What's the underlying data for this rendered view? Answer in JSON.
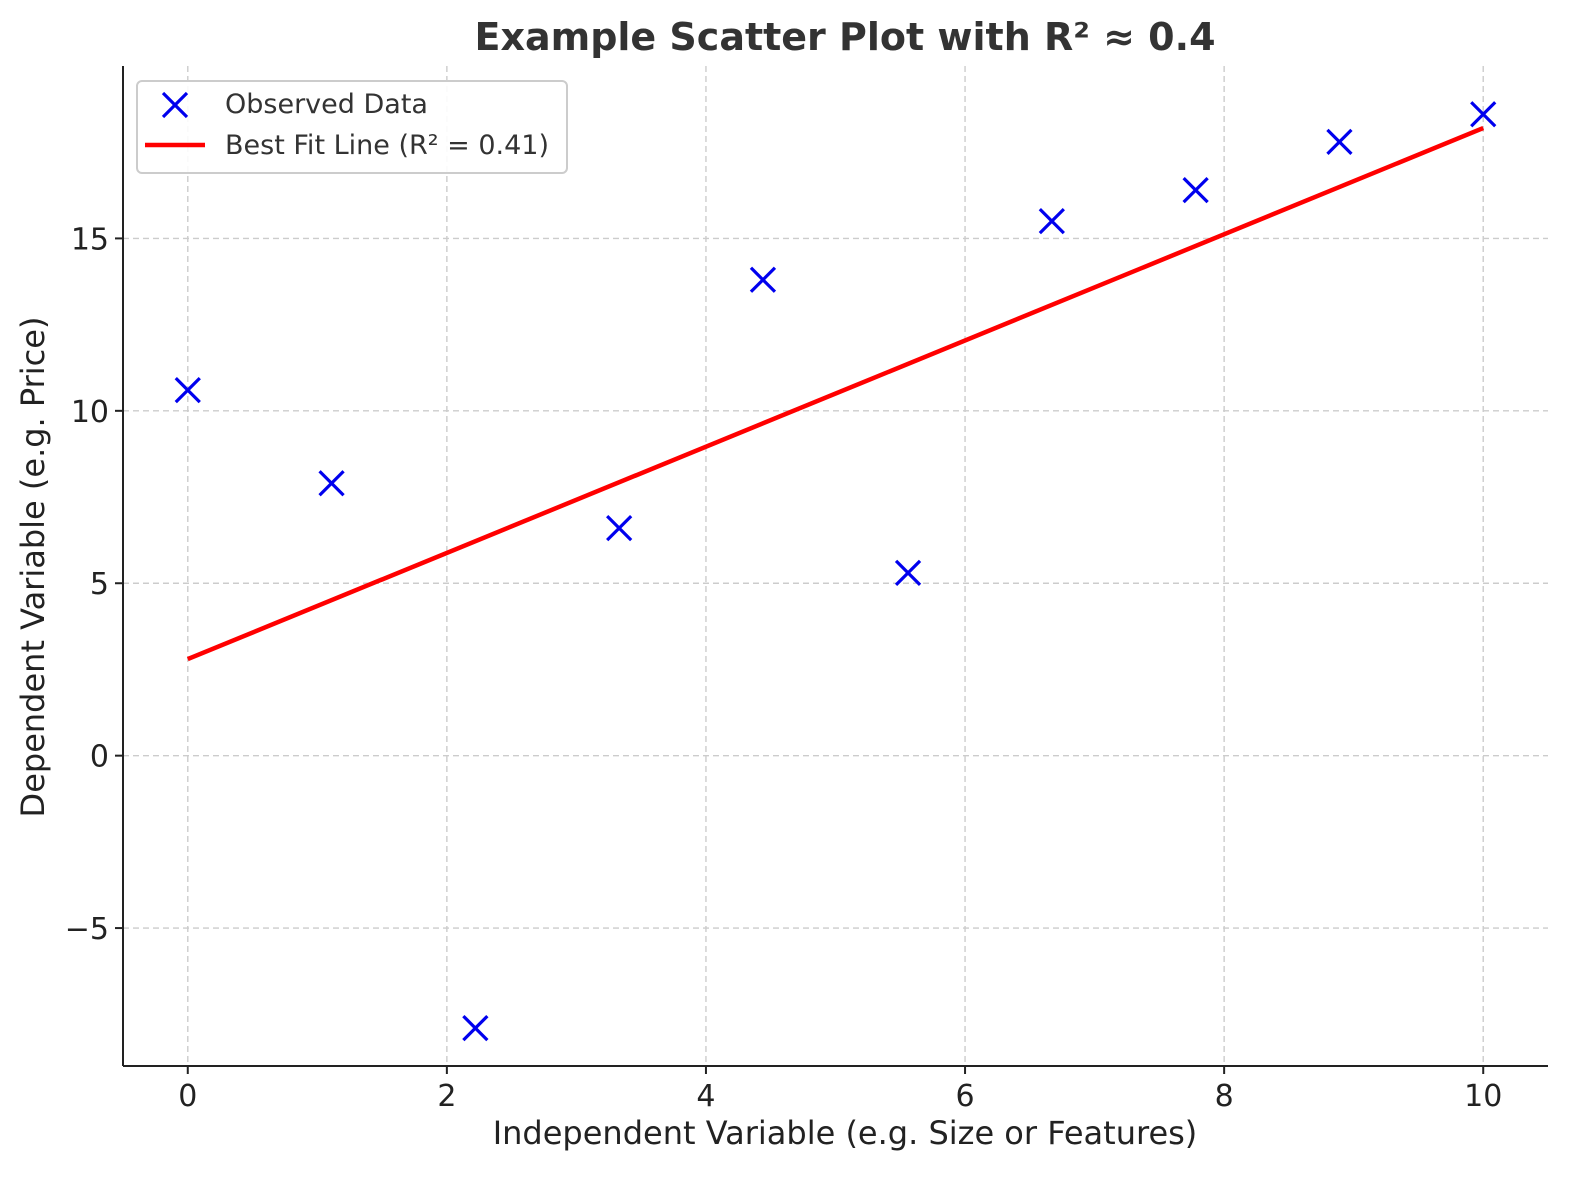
{
  "chart_data": {
    "type": "scatter",
    "title": "Example Scatter Plot with R² ≈ 0.4",
    "xlabel": "Independent Variable (e.g. Size or Features)",
    "ylabel": "Dependent Variable (e.g. Price)",
    "xlim": [
      -0.5,
      10.5
    ],
    "ylim": [
      -9,
      20
    ],
    "x_ticks": [
      0,
      2,
      4,
      6,
      8,
      10
    ],
    "x_tick_labels": [
      "0",
      "2",
      "4",
      "6",
      "8",
      "10"
    ],
    "y_ticks": [
      -5,
      0,
      5,
      10,
      15
    ],
    "y_tick_labels": [
      "−5",
      "0",
      "5",
      "10",
      "15"
    ],
    "grid": true,
    "legend": {
      "position": "top-left",
      "entries": [
        {
          "label": "Observed Data",
          "marker": "x",
          "color": "#0000ee"
        },
        {
          "label": "Best Fit Line (R² = 0.41)",
          "marker": "line",
          "color": "#ff0000"
        }
      ]
    },
    "series": [
      {
        "name": "Observed Data",
        "kind": "scatter",
        "marker": "x",
        "color": "#0000ee",
        "x": [
          0,
          1.11,
          2.22,
          3.33,
          4.44,
          5.56,
          6.67,
          7.78,
          8.89,
          10
        ],
        "y": [
          10.6,
          7.9,
          -7.9,
          6.6,
          13.8,
          5.3,
          15.5,
          16.4,
          17.8,
          18.6
        ]
      },
      {
        "name": "Best Fit Line (R² = 0.41)",
        "kind": "line",
        "color": "#ff0000",
        "x": [
          0,
          10
        ],
        "y": [
          2.8,
          18.2
        ]
      }
    ]
  }
}
